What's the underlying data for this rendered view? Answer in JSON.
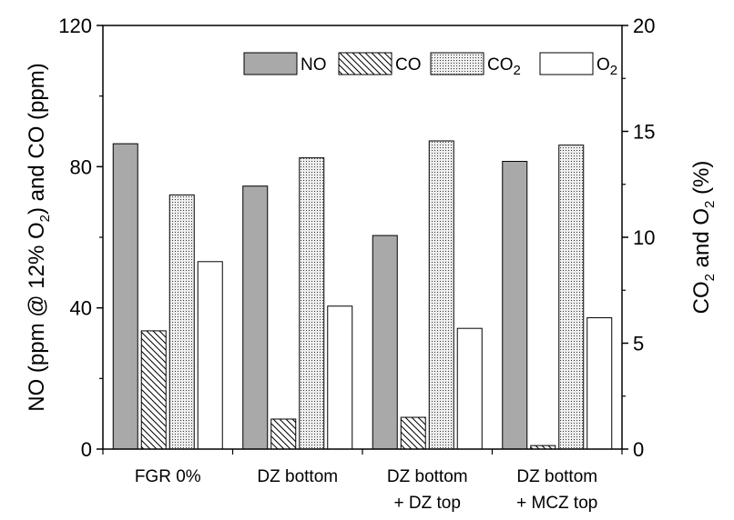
{
  "chart_data": {
    "type": "bar",
    "categories": [
      [
        "FGR 0%"
      ],
      [
        "DZ bottom"
      ],
      [
        "DZ bottom",
        "+ DZ top"
      ],
      [
        "DZ bottom",
        "+ MCZ top"
      ]
    ],
    "series": [
      {
        "name": "NO",
        "key": "NO",
        "axis": "left",
        "color": "#a9a9a9",
        "pattern": "solid",
        "values": [
          86.5,
          74.5,
          60.5,
          81.5
        ]
      },
      {
        "name": "CO",
        "key": "CO",
        "axis": "left",
        "color": "#ffffff",
        "pattern": "hatch",
        "values": [
          33.5,
          8.5,
          9.0,
          1.0
        ]
      },
      {
        "name": "CO2",
        "key": "CO2",
        "axis": "right",
        "color": "#e6e6e6",
        "pattern": "dots",
        "values": [
          12.0,
          13.75,
          14.55,
          14.35
        ]
      },
      {
        "name": "O2",
        "key": "O2",
        "axis": "right",
        "color": "#ffffff",
        "pattern": "solid",
        "values": [
          8.85,
          6.75,
          5.7,
          6.2
        ]
      }
    ],
    "left_axis": {
      "label_prefix": "NO (ppm @ 12% O",
      "label_sub": "2",
      "label_suffix": ") and CO (ppm)",
      "ylim": [
        0,
        120
      ],
      "ticks": [
        0,
        40,
        80,
        120
      ]
    },
    "right_axis": {
      "label_prefix": "CO",
      "label_sub1": "2",
      "label_mid": " and O",
      "label_sub2": "2",
      "label_suffix": " (%)",
      "ylim": [
        0,
        20
      ],
      "ticks": [
        0,
        5,
        10,
        15,
        20
      ]
    },
    "legend": {
      "placement": "top-right",
      "entries": [
        {
          "key": "NO",
          "text": "NO",
          "sub": ""
        },
        {
          "key": "CO",
          "text": "CO",
          "sub": ""
        },
        {
          "key": "CO2",
          "text": "CO",
          "sub": "2"
        },
        {
          "key": "O2",
          "text": "O",
          "sub": "2"
        }
      ]
    },
    "grid": false
  }
}
